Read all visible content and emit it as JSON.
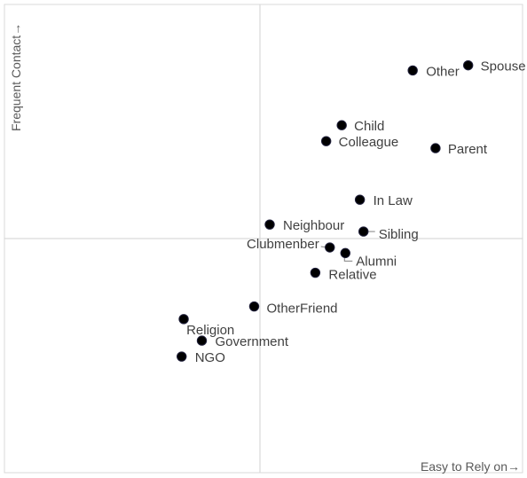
{
  "chart_data": {
    "type": "scatter",
    "xlabel": "Easy to Rely on→",
    "ylabel": "Frequent Contact→",
    "xlim": [
      0,
      100
    ],
    "ylim": [
      0,
      100
    ],
    "quadrant_lines": {
      "x": 50,
      "y": 50
    },
    "grid": false,
    "legend": "none",
    "marker_color": "#000000",
    "points": [
      {
        "label": "Spouse",
        "x": 89.5,
        "y": 87.0
      },
      {
        "label": "Other",
        "x": 78.8,
        "y": 85.9
      },
      {
        "label": "Child",
        "x": 65.1,
        "y": 74.2
      },
      {
        "label": "Colleague",
        "x": 62.1,
        "y": 70.8
      },
      {
        "label": "Parent",
        "x": 83.2,
        "y": 69.3
      },
      {
        "label": "In Law",
        "x": 68.6,
        "y": 58.3
      },
      {
        "label": "Neighbour",
        "x": 51.2,
        "y": 53.0
      },
      {
        "label": "Sibling",
        "x": 69.3,
        "y": 51.5
      },
      {
        "label": "Clubmenber",
        "x": 62.8,
        "y": 48.1
      },
      {
        "label": "Alumni",
        "x": 65.8,
        "y": 46.9
      },
      {
        "label": "Relative",
        "x": 60.0,
        "y": 42.7
      },
      {
        "label": "OtherFriend",
        "x": 48.2,
        "y": 35.5
      },
      {
        "label": "Religion",
        "x": 34.6,
        "y": 32.8
      },
      {
        "label": "Government",
        "x": 38.1,
        "y": 28.2
      },
      {
        "label": "NGO",
        "x": 34.2,
        "y": 24.8
      }
    ]
  }
}
